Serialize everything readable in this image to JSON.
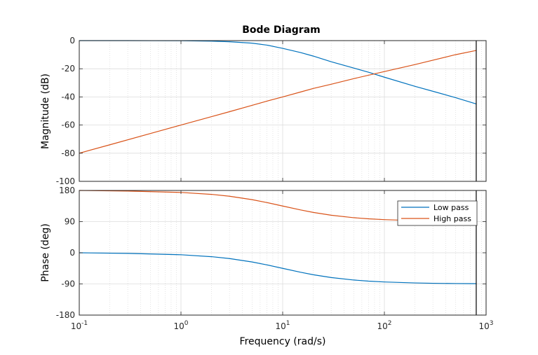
{
  "chart_data": {
    "type": "line",
    "title": "Bode Diagram",
    "xlabel": "Frequency  (rad/s)",
    "x_scale": "log",
    "xlim": [
      0.1,
      1000
    ],
    "x_ticks": [
      {
        "base": "10",
        "exp": "-1"
      },
      {
        "base": "10",
        "exp": "0"
      },
      {
        "base": "10",
        "exp": "1"
      },
      {
        "base": "10",
        "exp": "2"
      },
      {
        "base": "10",
        "exp": "3"
      }
    ],
    "grid": true,
    "legend_position": "top-right of phase panel",
    "vline_x": 800,
    "panels": [
      {
        "name": "magnitude",
        "ylabel": "Magnitude (dB)",
        "ylim": [
          -100,
          0
        ],
        "y_ticks": [
          "0",
          "-20",
          "-40",
          "-60",
          "-80",
          "-100"
        ],
        "series": [
          {
            "name": "Low pass",
            "color": "#0072BD",
            "x": [
              0.1,
              0.3,
              1,
              2,
              3,
              5,
              7,
              10,
              15,
              20,
              30,
              50,
              70,
              100,
              200,
              300,
              500,
              800
            ],
            "y": [
              0,
              0,
              -0.1,
              -0.4,
              -0.8,
              -1.8,
              -3.2,
              -5.5,
              -8.5,
              -11,
              -15,
              -19.5,
              -22.5,
              -26,
              -32.5,
              -36,
              -40.5,
              -45
            ]
          },
          {
            "name": "High pass",
            "color": "#D95319",
            "x": [
              0.1,
              0.2,
              0.5,
              1,
              2,
              3,
              5,
              7,
              10,
              15,
              20,
              30,
              50,
              100,
              200,
              500,
              800
            ],
            "y": [
              -80,
              -74,
              -66,
              -60,
              -54,
              -50.5,
              -46,
              -43,
              -40,
              -36.5,
              -34,
              -31,
              -27,
              -22,
              -17,
              -10,
              -7
            ]
          }
        ]
      },
      {
        "name": "phase",
        "ylabel": "Phase (deg)",
        "ylim": [
          -180,
          180
        ],
        "y_ticks": [
          "180",
          "90",
          "0",
          "-90",
          "-180"
        ],
        "series": [
          {
            "name": "Low pass",
            "color": "#0072BD",
            "x": [
              0.1,
              0.3,
              1,
              2,
              3,
              5,
              7,
              10,
              15,
              20,
              30,
              50,
              70,
              100,
              200,
              300,
              500,
              800
            ],
            "y": [
              0,
              -1.7,
              -5.7,
              -11.3,
              -16.7,
              -26.6,
              -35,
              -45,
              -56.3,
              -63.4,
              -71.6,
              -78.7,
              -81.9,
              -84.3,
              -87.1,
              -88.1,
              -88.9,
              -89.3
            ]
          },
          {
            "name": "High pass",
            "color": "#D95319",
            "x": [
              0.1,
              0.3,
              1,
              2,
              3,
              5,
              7,
              10,
              15,
              20,
              30,
              50,
              70,
              100,
              200,
              300,
              500,
              800
            ],
            "y": [
              180,
              178.3,
              174.3,
              168.7,
              163.3,
              153.4,
              145,
              135,
              123.7,
              116.6,
              108.4,
              101.3,
              98.1,
              95.7,
              92.9,
              91.9,
              91.1,
              90.7
            ]
          }
        ]
      }
    ]
  }
}
